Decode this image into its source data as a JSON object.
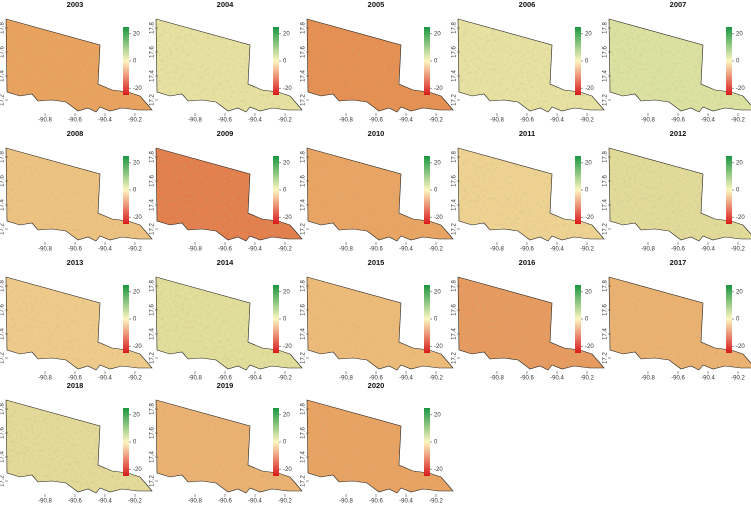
{
  "maps": {
    "panels": [
      {
        "title": "2003",
        "color": "#e9a25e"
      },
      {
        "title": "2004",
        "color": "#e6e1a0"
      },
      {
        "title": "2005",
        "color": "#e58f52"
      },
      {
        "title": "2006",
        "color": "#e7e1a2"
      },
      {
        "title": "2007",
        "color": "#dbe1a0"
      },
      {
        "title": "2008",
        "color": "#edc281"
      },
      {
        "title": "2009",
        "color": "#e27f4d"
      },
      {
        "title": "2010",
        "color": "#e9a463"
      },
      {
        "title": "2011",
        "color": "#eed292"
      },
      {
        "title": "2012",
        "color": "#e1da99"
      },
      {
        "title": "2013",
        "color": "#efcb8b"
      },
      {
        "title": "2014",
        "color": "#e1dd9a"
      },
      {
        "title": "2015",
        "color": "#edbb79"
      },
      {
        "title": "2016",
        "color": "#e69a5f"
      },
      {
        "title": "2017",
        "color": "#eab171"
      },
      {
        "title": "2018",
        "color": "#e3d998"
      },
      {
        "title": "2019",
        "color": "#eab172"
      },
      {
        "title": "2020",
        "color": "#e8a262"
      }
    ],
    "xlim": [
      -91.0,
      -90.1
    ],
    "ylim": [
      17.1,
      17.9
    ],
    "xticks": [
      -90.8,
      -90.6,
      -90.4,
      -90.2
    ],
    "yticks": [
      17.2,
      17.4,
      17.6,
      17.8
    ],
    "colorbar": {
      "lim": [
        -25,
        25
      ],
      "ticks": [
        20,
        0,
        -20
      ],
      "colors": [
        "#d7191c",
        "#fdf6c0",
        "#1a9641"
      ]
    }
  }
}
